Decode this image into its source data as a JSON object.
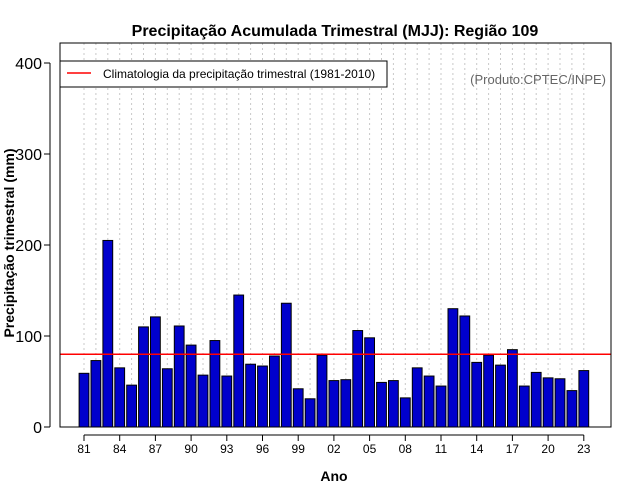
{
  "chart_data": {
    "type": "bar",
    "title": "Precipitação Acumulada Trimestral (MJJ): Região 109",
    "xlabel": "Ano",
    "ylabel": "Precipitação trimestral (mm)",
    "ylim": [
      0,
      400
    ],
    "yticks": [
      0,
      100,
      200,
      300,
      400
    ],
    "grid": "vertical dotted lines at each year",
    "categories": [
      "1981",
      "1982",
      "1983",
      "1984",
      "1985",
      "1986",
      "1987",
      "1988",
      "1989",
      "1990",
      "1991",
      "1992",
      "1993",
      "1994",
      "1995",
      "1996",
      "1997",
      "1998",
      "1999",
      "2000",
      "2001",
      "2002",
      "2003",
      "2004",
      "2005",
      "2006",
      "2007",
      "2008",
      "2009",
      "2010",
      "2011",
      "2012",
      "2013",
      "2014",
      "2015",
      "2016",
      "2017",
      "2018",
      "2019",
      "2020",
      "2021",
      "2022",
      "2023"
    ],
    "xtick_labels": [
      {
        "category": "1981",
        "label": "81"
      },
      {
        "category": "1984",
        "label": "84"
      },
      {
        "category": "1987",
        "label": "87"
      },
      {
        "category": "1990",
        "label": "90"
      },
      {
        "category": "1993",
        "label": "93"
      },
      {
        "category": "1996",
        "label": "96"
      },
      {
        "category": "1999",
        "label": "99"
      },
      {
        "category": "2002",
        "label": "02"
      },
      {
        "category": "2005",
        "label": "05"
      },
      {
        "category": "2008",
        "label": "08"
      },
      {
        "category": "2011",
        "label": "11"
      },
      {
        "category": "2014",
        "label": "14"
      },
      {
        "category": "2017",
        "label": "17"
      },
      {
        "category": "2020",
        "label": "20"
      },
      {
        "category": "2023",
        "label": "23"
      }
    ],
    "series": [
      {
        "name": "Precipitação trimestral",
        "color": "#0000cc",
        "values": [
          59,
          73,
          205,
          65,
          46,
          110,
          121,
          64,
          111,
          90,
          57,
          95,
          56,
          145,
          69,
          67,
          78,
          136,
          42,
          31,
          79,
          51,
          52,
          106,
          98,
          49,
          51,
          32,
          65,
          56,
          45,
          130,
          122,
          71,
          79,
          68,
          85,
          45,
          60,
          54,
          53,
          40,
          62
        ]
      }
    ],
    "climatology": {
      "label": "Climatologia da precipitação trimestral (1981-2010)",
      "value": 80,
      "color": "#ff0000"
    },
    "legend_position": "top-left",
    "credit": "(Produto:CPTEC/INPE)"
  }
}
